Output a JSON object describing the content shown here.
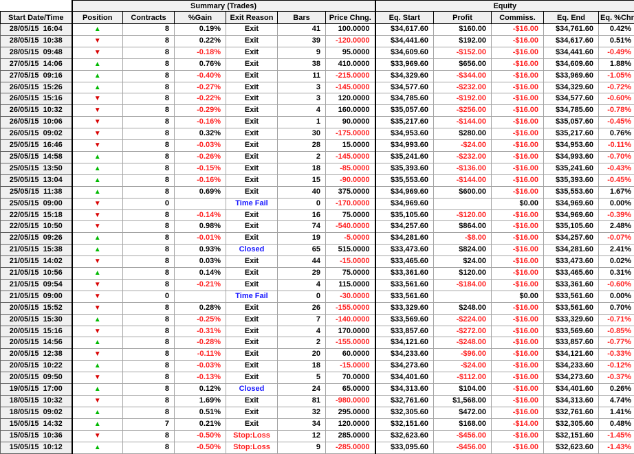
{
  "colors": {
    "negative": "#ff2020",
    "info_blue": "#1414ff",
    "long_green": "#00b900",
    "short_red": "#d90000",
    "header_bg": "#f0f0f0",
    "gridline": "#a3a3a3"
  },
  "icons": {
    "long_up_triangle": "▲",
    "short_down_triangle": "▼"
  },
  "table": {
    "group_headers": [
      {
        "label": "Summary (Trades)"
      },
      {
        "label": "Equity"
      }
    ],
    "columns": [
      "Start Date/Time",
      "Position",
      "Contracts",
      "%Gain",
      "Exit Reason",
      "Bars",
      "Price Chng.",
      "Eq. Start",
      "Profit",
      "Commiss.",
      "Eq. End",
      "Eq. %Chng"
    ],
    "exit_reason_styles": {
      "Exit": "normal",
      "Time Fail": "info",
      "Closed": "info",
      "Stop:Loss": "loss"
    },
    "rows": [
      {
        "datetime": "28/05/15  16:04",
        "position": "long",
        "contracts": "8",
        "gain": "0.19%",
        "exit_reason": "Exit",
        "bars": "41",
        "price_chng": "100.0000",
        "eq_start": "$34,617.60",
        "profit": "$160.00",
        "commiss": "-$16.00",
        "eq_end": "$34,761.60",
        "eq_pchng": "0.42%"
      },
      {
        "datetime": "28/05/15  10:38",
        "position": "short",
        "contracts": "8",
        "gain": "0.22%",
        "exit_reason": "Exit",
        "bars": "39",
        "price_chng": "-120.0000",
        "eq_start": "$34,441.60",
        "profit": "$192.00",
        "commiss": "-$16.00",
        "eq_end": "$34,617.60",
        "eq_pchng": "0.51%"
      },
      {
        "datetime": "28/05/15  09:48",
        "position": "short",
        "contracts": "8",
        "gain": "-0.18%",
        "exit_reason": "Exit",
        "bars": "9",
        "price_chng": "95.0000",
        "eq_start": "$34,609.60",
        "profit": "-$152.00",
        "commiss": "-$16.00",
        "eq_end": "$34,441.60",
        "eq_pchng": "-0.49%"
      },
      {
        "datetime": "27/05/15  14:06",
        "position": "long",
        "contracts": "8",
        "gain": "0.76%",
        "exit_reason": "Exit",
        "bars": "38",
        "price_chng": "410.0000",
        "eq_start": "$33,969.60",
        "profit": "$656.00",
        "commiss": "-$16.00",
        "eq_end": "$34,609.60",
        "eq_pchng": "1.88%"
      },
      {
        "datetime": "27/05/15  09:16",
        "position": "long",
        "contracts": "8",
        "gain": "-0.40%",
        "exit_reason": "Exit",
        "bars": "11",
        "price_chng": "-215.0000",
        "eq_start": "$34,329.60",
        "profit": "-$344.00",
        "commiss": "-$16.00",
        "eq_end": "$33,969.60",
        "eq_pchng": "-1.05%"
      },
      {
        "datetime": "26/05/15  15:26",
        "position": "long",
        "contracts": "8",
        "gain": "-0.27%",
        "exit_reason": "Exit",
        "bars": "3",
        "price_chng": "-145.0000",
        "eq_start": "$34,577.60",
        "profit": "-$232.00",
        "commiss": "-$16.00",
        "eq_end": "$34,329.60",
        "eq_pchng": "-0.72%"
      },
      {
        "datetime": "26/05/15  15:16",
        "position": "short",
        "contracts": "8",
        "gain": "-0.22%",
        "exit_reason": "Exit",
        "bars": "3",
        "price_chng": "120.0000",
        "eq_start": "$34,785.60",
        "profit": "-$192.00",
        "commiss": "-$16.00",
        "eq_end": "$34,577.60",
        "eq_pchng": "-0.60%"
      },
      {
        "datetime": "26/05/15  10:32",
        "position": "short",
        "contracts": "8",
        "gain": "-0.29%",
        "exit_reason": "Exit",
        "bars": "4",
        "price_chng": "160.0000",
        "eq_start": "$35,057.60",
        "profit": "-$256.00",
        "commiss": "-$16.00",
        "eq_end": "$34,785.60",
        "eq_pchng": "-0.78%"
      },
      {
        "datetime": "26/05/15  10:06",
        "position": "short",
        "contracts": "8",
        "gain": "-0.16%",
        "exit_reason": "Exit",
        "bars": "1",
        "price_chng": "90.0000",
        "eq_start": "$35,217.60",
        "profit": "-$144.00",
        "commiss": "-$16.00",
        "eq_end": "$35,057.60",
        "eq_pchng": "-0.45%"
      },
      {
        "datetime": "26/05/15  09:02",
        "position": "short",
        "contracts": "8",
        "gain": "0.32%",
        "exit_reason": "Exit",
        "bars": "30",
        "price_chng": "-175.0000",
        "eq_start": "$34,953.60",
        "profit": "$280.00",
        "commiss": "-$16.00",
        "eq_end": "$35,217.60",
        "eq_pchng": "0.76%"
      },
      {
        "datetime": "25/05/15  16:46",
        "position": "short",
        "contracts": "8",
        "gain": "-0.03%",
        "exit_reason": "Exit",
        "bars": "28",
        "price_chng": "15.0000",
        "eq_start": "$34,993.60",
        "profit": "-$24.00",
        "commiss": "-$16.00",
        "eq_end": "$34,953.60",
        "eq_pchng": "-0.11%"
      },
      {
        "datetime": "25/05/15  14:58",
        "position": "long",
        "contracts": "8",
        "gain": "-0.26%",
        "exit_reason": "Exit",
        "bars": "2",
        "price_chng": "-145.0000",
        "eq_start": "$35,241.60",
        "profit": "-$232.00",
        "commiss": "-$16.00",
        "eq_end": "$34,993.60",
        "eq_pchng": "-0.70%"
      },
      {
        "datetime": "25/05/15  13:50",
        "position": "long",
        "contracts": "8",
        "gain": "-0.15%",
        "exit_reason": "Exit",
        "bars": "18",
        "price_chng": "-85.0000",
        "eq_start": "$35,393.60",
        "profit": "-$136.00",
        "commiss": "-$16.00",
        "eq_end": "$35,241.60",
        "eq_pchng": "-0.43%"
      },
      {
        "datetime": "25/05/15  13:04",
        "position": "long",
        "contracts": "8",
        "gain": "-0.16%",
        "exit_reason": "Exit",
        "bars": "15",
        "price_chng": "-90.0000",
        "eq_start": "$35,553.60",
        "profit": "-$144.00",
        "commiss": "-$16.00",
        "eq_end": "$35,393.60",
        "eq_pchng": "-0.45%"
      },
      {
        "datetime": "25/05/15  11:38",
        "position": "long",
        "contracts": "8",
        "gain": "0.69%",
        "exit_reason": "Exit",
        "bars": "40",
        "price_chng": "375.0000",
        "eq_start": "$34,969.60",
        "profit": "$600.00",
        "commiss": "-$16.00",
        "eq_end": "$35,553.60",
        "eq_pchng": "1.67%"
      },
      {
        "datetime": "25/05/15  09:00",
        "position": "short",
        "contracts": "0",
        "gain": "",
        "exit_reason": "Time Fail",
        "bars": "0",
        "price_chng": "-170.0000",
        "eq_start": "$34,969.60",
        "profit": "",
        "commiss": "$0.00",
        "eq_end": "$34,969.60",
        "eq_pchng": "0.00%"
      },
      {
        "datetime": "22/05/15  15:18",
        "position": "short",
        "contracts": "8",
        "gain": "-0.14%",
        "exit_reason": "Exit",
        "bars": "16",
        "price_chng": "75.0000",
        "eq_start": "$35,105.60",
        "profit": "-$120.00",
        "commiss": "-$16.00",
        "eq_end": "$34,969.60",
        "eq_pchng": "-0.39%"
      },
      {
        "datetime": "22/05/15  10:50",
        "position": "short",
        "contracts": "8",
        "gain": "0.98%",
        "exit_reason": "Exit",
        "bars": "74",
        "price_chng": "-540.0000",
        "eq_start": "$34,257.60",
        "profit": "$864.00",
        "commiss": "-$16.00",
        "eq_end": "$35,105.60",
        "eq_pchng": "2.48%"
      },
      {
        "datetime": "22/05/15  09:26",
        "position": "long",
        "contracts": "8",
        "gain": "-0.01%",
        "exit_reason": "Exit",
        "bars": "19",
        "price_chng": "-5.0000",
        "eq_start": "$34,281.60",
        "profit": "-$8.00",
        "commiss": "-$16.00",
        "eq_end": "$34,257.60",
        "eq_pchng": "-0.07%"
      },
      {
        "datetime": "21/05/15  15:38",
        "position": "long",
        "contracts": "8",
        "gain": "0.93%",
        "exit_reason": "Closed",
        "bars": "65",
        "price_chng": "515.0000",
        "eq_start": "$33,473.60",
        "profit": "$824.00",
        "commiss": "-$16.00",
        "eq_end": "$34,281.60",
        "eq_pchng": "2.41%"
      },
      {
        "datetime": "21/05/15  14:02",
        "position": "short",
        "contracts": "8",
        "gain": "0.03%",
        "exit_reason": "Exit",
        "bars": "44",
        "price_chng": "-15.0000",
        "eq_start": "$33,465.60",
        "profit": "$24.00",
        "commiss": "-$16.00",
        "eq_end": "$33,473.60",
        "eq_pchng": "0.02%"
      },
      {
        "datetime": "21/05/15  10:56",
        "position": "long",
        "contracts": "8",
        "gain": "0.14%",
        "exit_reason": "Exit",
        "bars": "29",
        "price_chng": "75.0000",
        "eq_start": "$33,361.60",
        "profit": "$120.00",
        "commiss": "-$16.00",
        "eq_end": "$33,465.60",
        "eq_pchng": "0.31%"
      },
      {
        "datetime": "21/05/15  09:54",
        "position": "short",
        "contracts": "8",
        "gain": "-0.21%",
        "exit_reason": "Exit",
        "bars": "4",
        "price_chng": "115.0000",
        "eq_start": "$33,561.60",
        "profit": "-$184.00",
        "commiss": "-$16.00",
        "eq_end": "$33,361.60",
        "eq_pchng": "-0.60%"
      },
      {
        "datetime": "21/05/15  09:00",
        "position": "short",
        "contracts": "0",
        "gain": "",
        "exit_reason": "Time Fail",
        "bars": "0",
        "price_chng": "-30.0000",
        "eq_start": "$33,561.60",
        "profit": "",
        "commiss": "$0.00",
        "eq_end": "$33,561.60",
        "eq_pchng": "0.00%"
      },
      {
        "datetime": "20/05/15  15:52",
        "position": "short",
        "contracts": "8",
        "gain": "0.28%",
        "exit_reason": "Exit",
        "bars": "26",
        "price_chng": "-155.0000",
        "eq_start": "$33,329.60",
        "profit": "$248.00",
        "commiss": "-$16.00",
        "eq_end": "$33,561.60",
        "eq_pchng": "0.70%"
      },
      {
        "datetime": "20/05/15  15:30",
        "position": "long",
        "contracts": "8",
        "gain": "-0.25%",
        "exit_reason": "Exit",
        "bars": "7",
        "price_chng": "-140.0000",
        "eq_start": "$33,569.60",
        "profit": "-$224.00",
        "commiss": "-$16.00",
        "eq_end": "$33,329.60",
        "eq_pchng": "-0.71%"
      },
      {
        "datetime": "20/05/15  15:16",
        "position": "short",
        "contracts": "8",
        "gain": "-0.31%",
        "exit_reason": "Exit",
        "bars": "4",
        "price_chng": "170.0000",
        "eq_start": "$33,857.60",
        "profit": "-$272.00",
        "commiss": "-$16.00",
        "eq_end": "$33,569.60",
        "eq_pchng": "-0.85%"
      },
      {
        "datetime": "20/05/15  14:56",
        "position": "long",
        "contracts": "8",
        "gain": "-0.28%",
        "exit_reason": "Exit",
        "bars": "2",
        "price_chng": "-155.0000",
        "eq_start": "$34,121.60",
        "profit": "-$248.00",
        "commiss": "-$16.00",
        "eq_end": "$33,857.60",
        "eq_pchng": "-0.77%"
      },
      {
        "datetime": "20/05/15  12:38",
        "position": "short",
        "contracts": "8",
        "gain": "-0.11%",
        "exit_reason": "Exit",
        "bars": "20",
        "price_chng": "60.0000",
        "eq_start": "$34,233.60",
        "profit": "-$96.00",
        "commiss": "-$16.00",
        "eq_end": "$34,121.60",
        "eq_pchng": "-0.33%"
      },
      {
        "datetime": "20/05/15  10:22",
        "position": "long",
        "contracts": "8",
        "gain": "-0.03%",
        "exit_reason": "Exit",
        "bars": "18",
        "price_chng": "-15.0000",
        "eq_start": "$34,273.60",
        "profit": "-$24.00",
        "commiss": "-$16.00",
        "eq_end": "$34,233.60",
        "eq_pchng": "-0.12%"
      },
      {
        "datetime": "20/05/15  09:50",
        "position": "short",
        "contracts": "8",
        "gain": "-0.13%",
        "exit_reason": "Exit",
        "bars": "5",
        "price_chng": "70.0000",
        "eq_start": "$34,401.60",
        "profit": "-$112.00",
        "commiss": "-$16.00",
        "eq_end": "$34,273.60",
        "eq_pchng": "-0.37%"
      },
      {
        "datetime": "19/05/15  17:00",
        "position": "long",
        "contracts": "8",
        "gain": "0.12%",
        "exit_reason": "Closed",
        "bars": "24",
        "price_chng": "65.0000",
        "eq_start": "$34,313.60",
        "profit": "$104.00",
        "commiss": "-$16.00",
        "eq_end": "$34,401.60",
        "eq_pchng": "0.26%"
      },
      {
        "datetime": "18/05/15  10:32",
        "position": "short",
        "contracts": "8",
        "gain": "1.69%",
        "exit_reason": "Exit",
        "bars": "81",
        "price_chng": "-980.0000",
        "eq_start": "$32,761.60",
        "profit": "$1,568.00",
        "commiss": "-$16.00",
        "eq_end": "$34,313.60",
        "eq_pchng": "4.74%"
      },
      {
        "datetime": "18/05/15  09:02",
        "position": "long",
        "contracts": "8",
        "gain": "0.51%",
        "exit_reason": "Exit",
        "bars": "32",
        "price_chng": "295.0000",
        "eq_start": "$32,305.60",
        "profit": "$472.00",
        "commiss": "-$16.00",
        "eq_end": "$32,761.60",
        "eq_pchng": "1.41%"
      },
      {
        "datetime": "15/05/15  14:32",
        "position": "long",
        "contracts": "7",
        "gain": "0.21%",
        "exit_reason": "Exit",
        "bars": "34",
        "price_chng": "120.0000",
        "eq_start": "$32,151.60",
        "profit": "$168.00",
        "commiss": "-$14.00",
        "eq_end": "$32,305.60",
        "eq_pchng": "0.48%"
      },
      {
        "datetime": "15/05/15  10:36",
        "position": "short",
        "contracts": "8",
        "gain": "-0.50%",
        "exit_reason": "Stop:Loss",
        "bars": "12",
        "price_chng": "285.0000",
        "eq_start": "$32,623.60",
        "profit": "-$456.00",
        "commiss": "-$16.00",
        "eq_end": "$32,151.60",
        "eq_pchng": "-1.45%"
      },
      {
        "datetime": "15/05/15  10:12",
        "position": "long",
        "contracts": "8",
        "gain": "-0.50%",
        "exit_reason": "Stop:Loss",
        "bars": "9",
        "price_chng": "-285.0000",
        "eq_start": "$33,095.60",
        "profit": "-$456.00",
        "commiss": "-$16.00",
        "eq_end": "$32,623.60",
        "eq_pchng": "-1.43%"
      }
    ]
  }
}
